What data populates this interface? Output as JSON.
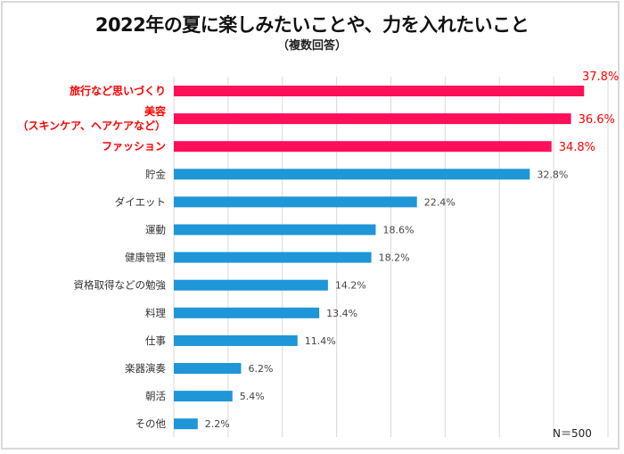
{
  "chart_data": {
    "type": "bar",
    "orientation": "horizontal",
    "title": "2022年の夏に楽しみたいことや、力を入れたいこと",
    "subtitle": "（複数回答）",
    "note": "N＝500",
    "xlim": [
      0,
      40
    ],
    "x_gridline_step": 5,
    "grid": true,
    "highlight_color": "#ff0f5a",
    "highlight_label_color": "#ff0000",
    "bar_color": "#1e96d7",
    "categories": [
      "旅行など思いづくり",
      "美容\n（スキンケア、ヘアケアなど）",
      "ファッション",
      "貯金",
      "ダイエット",
      "運動",
      "健康管理",
      "資格取得などの勉強",
      "料理",
      "仕事",
      "楽器演奏",
      "朝活",
      "その他"
    ],
    "values": [
      37.8,
      36.6,
      34.8,
      32.8,
      22.4,
      18.6,
      18.2,
      14.2,
      13.4,
      11.4,
      6.2,
      5.4,
      2.2
    ],
    "value_labels": [
      "37.8%",
      "36.6%",
      "34.8%",
      "32.8%",
      "22.4%",
      "18.6%",
      "18.2%",
      "14.2%",
      "13.4%",
      "11.4%",
      "6.2%",
      "5.4%",
      "2.2%"
    ],
    "highlighted": [
      true,
      true,
      true,
      false,
      false,
      false,
      false,
      false,
      false,
      false,
      false,
      false,
      false
    ]
  }
}
